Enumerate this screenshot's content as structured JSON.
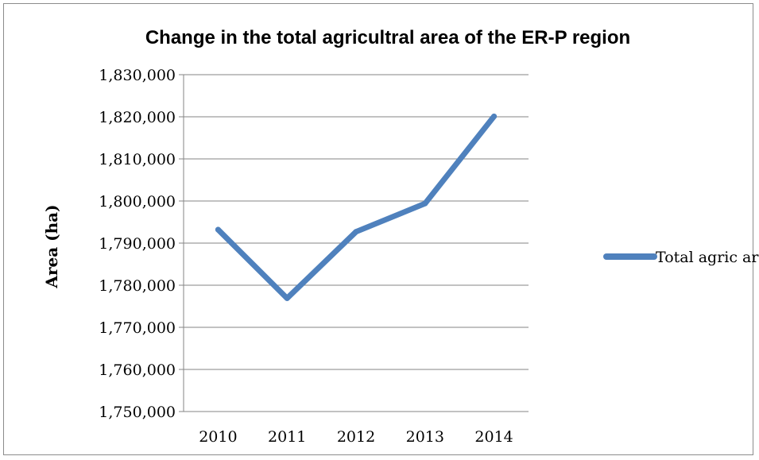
{
  "chart_data": {
    "type": "line",
    "title": "Change in the total agricultral area of the ER-P region",
    "xlabel": "",
    "ylabel": "Area (ha)",
    "categories": [
      "2010",
      "2011",
      "2012",
      "2013",
      "2014"
    ],
    "series": [
      {
        "name": "Total agric area",
        "color": "#4f81bd",
        "values": [
          1793200,
          1776900,
          1792700,
          1799400,
          1820100
        ]
      }
    ],
    "ylim": [
      1750000,
      1830000
    ],
    "yticks": [
      1750000,
      1760000,
      1770000,
      1780000,
      1790000,
      1800000,
      1810000,
      1820000,
      1830000
    ],
    "ytick_labels": [
      "1,750,000",
      "1,760,000",
      "1,770,000",
      "1,780,000",
      "1,790,000",
      "1,800,000",
      "1,810,000",
      "1,820,000",
      "1,830,000"
    ],
    "grid": true,
    "legend_position": "right"
  }
}
